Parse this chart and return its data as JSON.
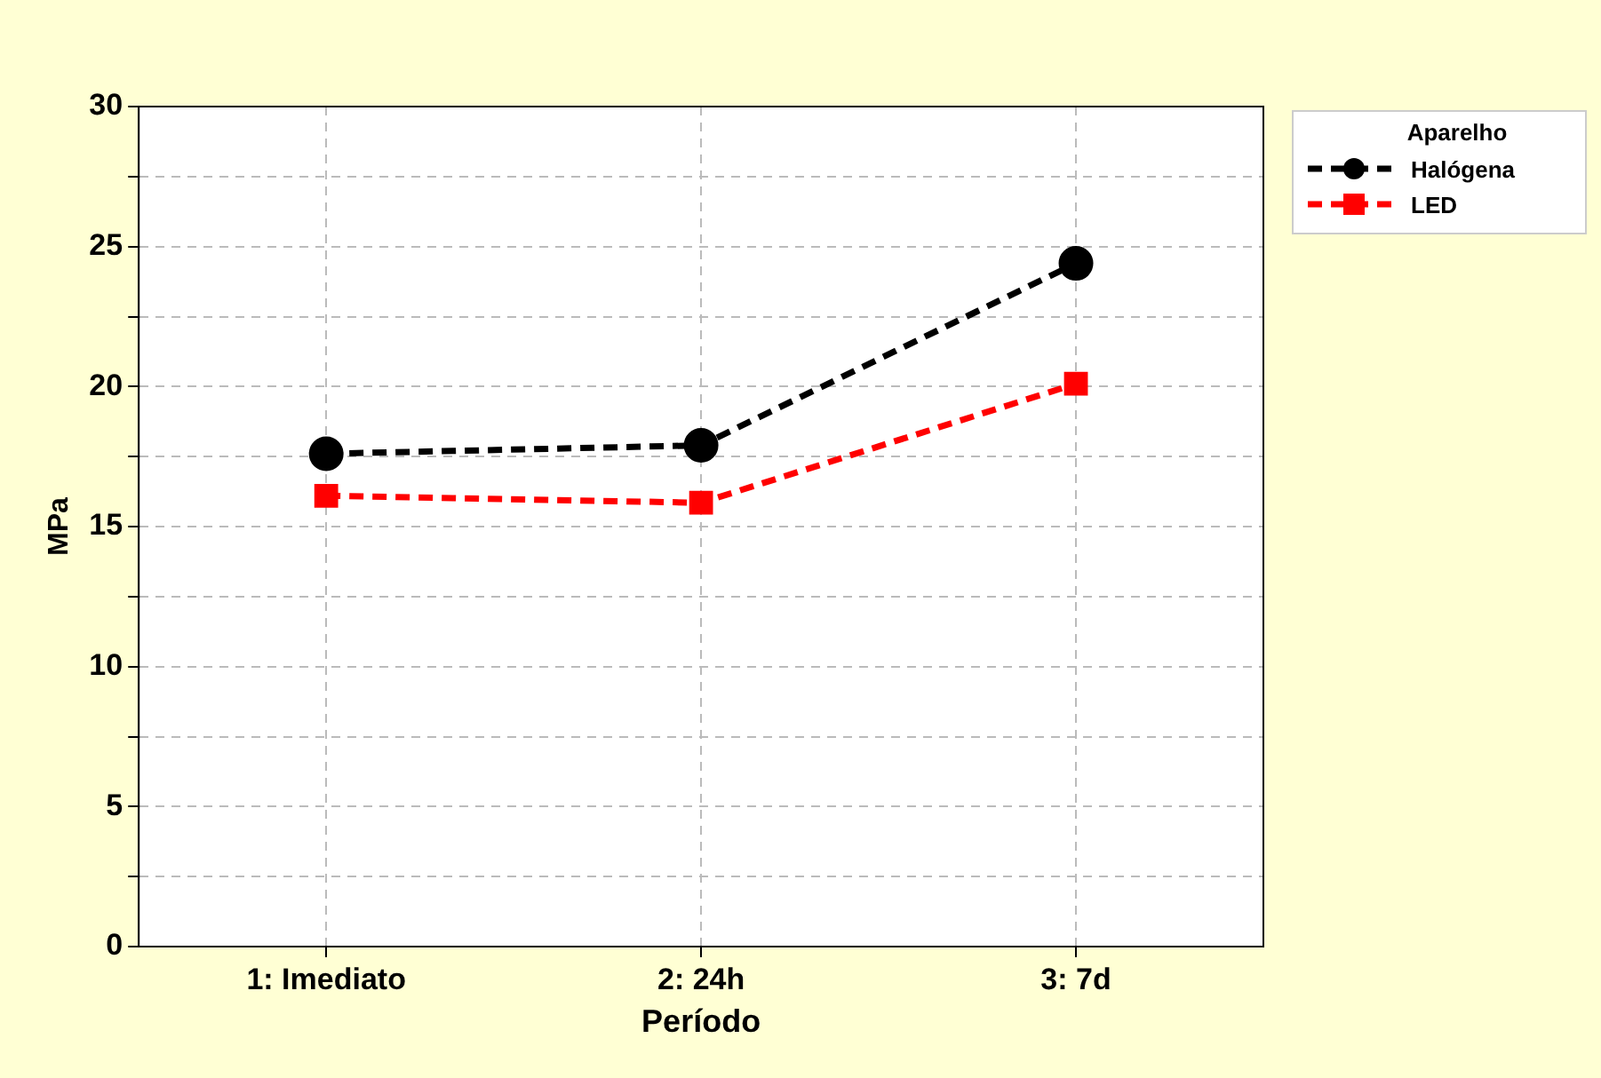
{
  "chart_data": {
    "type": "line",
    "xlabel": "Período",
    "ylabel": "MPa",
    "legend_title": "Aparelho",
    "categories": [
      "1: Imediato",
      "2: 24h",
      "3: 7d"
    ],
    "series": [
      {
        "name": "Halógena",
        "color": "#000000",
        "marker": "circle",
        "values": [
          17.6,
          17.9,
          24.4
        ]
      },
      {
        "name": "LED",
        "color": "#ff0000",
        "marker": "square",
        "values": [
          16.1,
          15.85,
          20.1
        ]
      }
    ],
    "ylim": [
      0,
      30
    ],
    "yticks": [
      0,
      {
        "value": 2.5,
        "label": null
      },
      5,
      {
        "value": 7.5,
        "label": null
      },
      10,
      {
        "value": 12.5,
        "label": null
      },
      15,
      {
        "value": 17.5,
        "label": null
      },
      20,
      {
        "value": 22.5,
        "label": null
      },
      25,
      {
        "value": 27.5,
        "label": null
      },
      30
    ],
    "grid": true,
    "legend": "right",
    "line_style": "dashed"
  }
}
